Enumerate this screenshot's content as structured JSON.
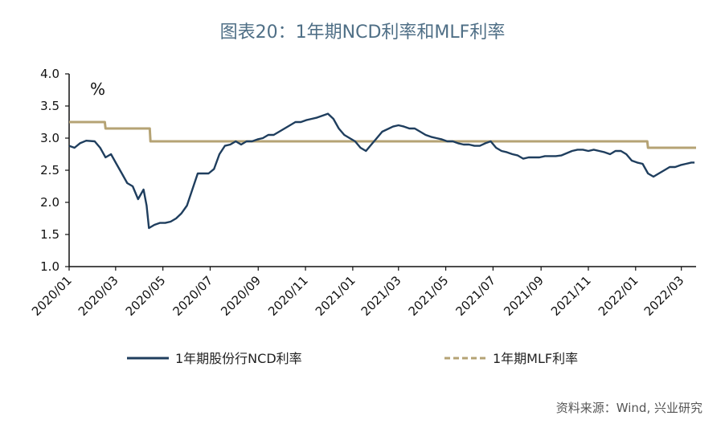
{
  "title": "图表20：1年期NCD利率和MLF利率",
  "source": "资料来源：Wind, 兴业研究",
  "colors": {
    "ncd": "#1f3e5e",
    "mlf": "#b5a374",
    "axis": "#111111",
    "title": "#4f6f86"
  },
  "chart_data": {
    "type": "line",
    "title": "图表20：1年期NCD利率和MLF利率",
    "ylabel": "%",
    "ylim": [
      1.0,
      4.0
    ],
    "yticks": [
      "4.0",
      "3.5",
      "3.0",
      "2.5",
      "2.0",
      "1.5",
      "1.0"
    ],
    "xlim": [
      "2020-01-01",
      "2022-03-20"
    ],
    "xticks": [
      {
        "date": "2020-01-01",
        "label": "2020/01"
      },
      {
        "date": "2020-03-01",
        "label": "2020/03"
      },
      {
        "date": "2020-05-01",
        "label": "2020/05"
      },
      {
        "date": "2020-07-01",
        "label": "2020/07"
      },
      {
        "date": "2020-09-01",
        "label": "2020/09"
      },
      {
        "date": "2020-11-01",
        "label": "2020/11"
      },
      {
        "date": "2021-01-01",
        "label": "2021/01"
      },
      {
        "date": "2021-03-01",
        "label": "2021/03"
      },
      {
        "date": "2021-05-01",
        "label": "2021/05"
      },
      {
        "date": "2021-07-01",
        "label": "2021/07"
      },
      {
        "date": "2021-09-01",
        "label": "2021/09"
      },
      {
        "date": "2021-11-01",
        "label": "2021/11"
      },
      {
        "date": "2022-01-01",
        "label": "2022/01"
      },
      {
        "date": "2022-03-01",
        "label": "2022/03"
      }
    ],
    "legend_position": "bottom",
    "series": [
      {
        "name": "1年期股份行NCD利率",
        "style": "solid",
        "x": [
          "2020-01-01",
          "2020-01-08",
          "2020-01-15",
          "2020-01-23",
          "2020-02-03",
          "2020-02-10",
          "2020-02-17",
          "2020-02-24",
          "2020-03-02",
          "2020-03-09",
          "2020-03-16",
          "2020-03-23",
          "2020-03-30",
          "2020-04-06",
          "2020-04-10",
          "2020-04-13",
          "2020-04-20",
          "2020-04-27",
          "2020-05-04",
          "2020-05-11",
          "2020-05-18",
          "2020-05-25",
          "2020-06-01",
          "2020-06-08",
          "2020-06-15",
          "2020-06-22",
          "2020-06-29",
          "2020-07-06",
          "2020-07-13",
          "2020-07-20",
          "2020-07-27",
          "2020-08-03",
          "2020-08-10",
          "2020-08-17",
          "2020-08-24",
          "2020-08-31",
          "2020-09-07",
          "2020-09-14",
          "2020-09-21",
          "2020-09-28",
          "2020-10-12",
          "2020-10-19",
          "2020-10-26",
          "2020-11-02",
          "2020-11-09",
          "2020-11-16",
          "2020-11-23",
          "2020-11-30",
          "2020-12-07",
          "2020-12-14",
          "2020-12-21",
          "2020-12-28",
          "2021-01-04",
          "2021-01-11",
          "2021-01-18",
          "2021-01-25",
          "2021-02-01",
          "2021-02-08",
          "2021-02-22",
          "2021-03-01",
          "2021-03-08",
          "2021-03-15",
          "2021-03-22",
          "2021-03-29",
          "2021-04-05",
          "2021-04-12",
          "2021-04-19",
          "2021-04-26",
          "2021-05-03",
          "2021-05-10",
          "2021-05-17",
          "2021-05-24",
          "2021-05-31",
          "2021-06-07",
          "2021-06-14",
          "2021-06-21",
          "2021-06-28",
          "2021-07-05",
          "2021-07-12",
          "2021-07-19",
          "2021-07-26",
          "2021-08-02",
          "2021-08-09",
          "2021-08-16",
          "2021-08-23",
          "2021-08-30",
          "2021-09-06",
          "2021-09-13",
          "2021-09-20",
          "2021-09-27",
          "2021-10-11",
          "2021-10-18",
          "2021-10-25",
          "2021-11-01",
          "2021-11-08",
          "2021-11-15",
          "2021-11-22",
          "2021-11-29",
          "2021-12-06",
          "2021-12-13",
          "2021-12-20",
          "2021-12-27",
          "2022-01-03",
          "2022-01-10",
          "2022-01-17",
          "2022-01-24",
          "2022-01-31",
          "2022-02-07",
          "2022-02-14",
          "2022-02-21",
          "2022-02-28",
          "2022-03-07",
          "2022-03-14",
          "2022-03-18"
        ],
        "values": [
          2.88,
          2.85,
          2.92,
          2.96,
          2.95,
          2.85,
          2.7,
          2.75,
          2.6,
          2.45,
          2.3,
          2.25,
          2.05,
          2.2,
          1.95,
          1.6,
          1.65,
          1.68,
          1.68,
          1.7,
          1.75,
          1.83,
          1.95,
          2.2,
          2.45,
          2.45,
          2.45,
          2.52,
          2.75,
          2.88,
          2.9,
          2.95,
          2.9,
          2.95,
          2.95,
          2.98,
          3.0,
          3.05,
          3.05,
          3.1,
          3.2,
          3.25,
          3.25,
          3.28,
          3.3,
          3.32,
          3.35,
          3.38,
          3.3,
          3.15,
          3.05,
          3.0,
          2.95,
          2.85,
          2.8,
          2.9,
          3.0,
          3.1,
          3.18,
          3.2,
          3.18,
          3.15,
          3.15,
          3.1,
          3.05,
          3.02,
          3.0,
          2.98,
          2.95,
          2.95,
          2.92,
          2.9,
          2.9,
          2.88,
          2.88,
          2.92,
          2.95,
          2.85,
          2.8,
          2.78,
          2.75,
          2.73,
          2.68,
          2.7,
          2.7,
          2.7,
          2.72,
          2.72,
          2.72,
          2.73,
          2.8,
          2.82,
          2.82,
          2.8,
          2.82,
          2.8,
          2.78,
          2.75,
          2.8,
          2.8,
          2.75,
          2.65,
          2.62,
          2.6,
          2.45,
          2.4,
          2.45,
          2.5,
          2.55,
          2.55,
          2.58,
          2.6,
          2.62,
          2.62
        ]
      },
      {
        "name": "1年期MLF利率",
        "style": "dashed",
        "x": [
          "2020-01-01",
          "2020-02-16",
          "2020-02-17",
          "2020-04-14",
          "2020-04-15",
          "2022-01-16",
          "2022-01-17",
          "2022-03-20"
        ],
        "values": [
          3.25,
          3.25,
          3.15,
          3.15,
          2.95,
          2.95,
          2.85,
          2.85
        ]
      }
    ]
  }
}
